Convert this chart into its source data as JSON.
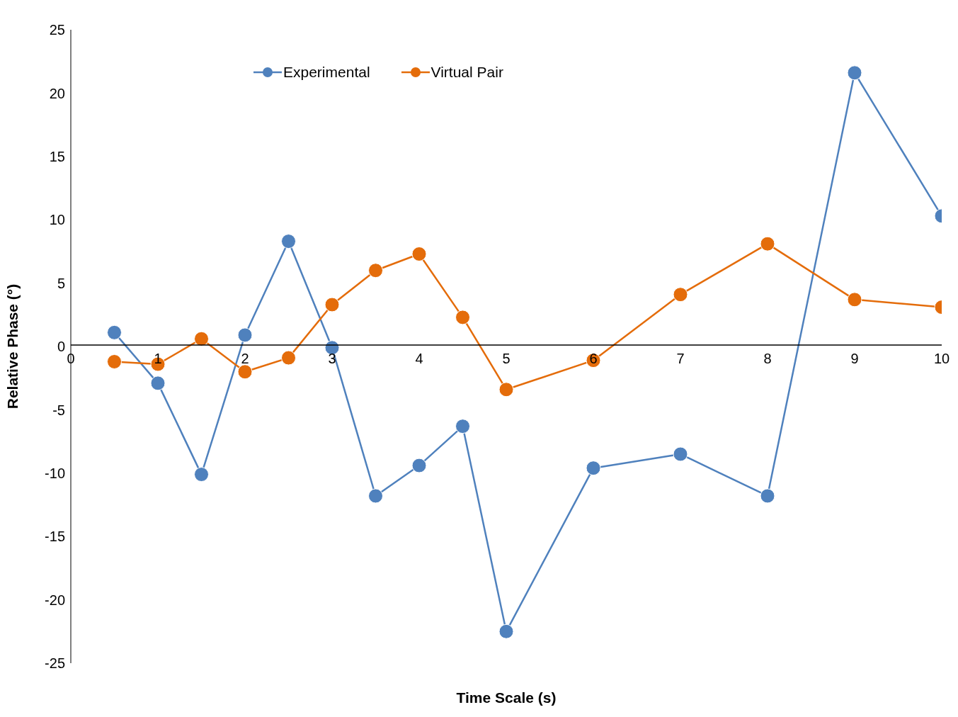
{
  "chart_data": {
    "type": "line",
    "xlabel": "Time Scale (s)",
    "ylabel": "Relative Phase (°)",
    "x": [
      0.5,
      1,
      1.5,
      2,
      2.5,
      3,
      3.5,
      4,
      4.5,
      5,
      6,
      7,
      8,
      9,
      10
    ],
    "series": [
      {
        "name": "Experimental",
        "color": "#4f81bd",
        "values": [
          1.1,
          -2.9,
          -10.1,
          0.9,
          8.3,
          -0.1,
          -11.8,
          -9.4,
          -6.3,
          -22.5,
          -9.6,
          -8.5,
          -11.8,
          21.6,
          10.3
        ]
      },
      {
        "name": "Virtual Pair",
        "color": "#e46c0a",
        "values": [
          -1.2,
          -1.4,
          0.6,
          -2.0,
          -0.9,
          3.3,
          6.0,
          7.3,
          2.3,
          -3.4,
          -1.1,
          4.1,
          8.1,
          3.7,
          3.1
        ]
      }
    ],
    "xlim": [
      0,
      10
    ],
    "xticks": [
      0,
      1,
      2,
      3,
      4,
      5,
      6,
      7,
      8,
      9,
      10
    ],
    "ylim": [
      -25,
      25
    ],
    "yticks": [
      -25,
      -20,
      -15,
      -10,
      -5,
      0,
      5,
      10,
      15,
      20,
      25
    ],
    "grid": false,
    "legend": "top",
    "marker": "circle",
    "line_style": "solid"
  }
}
